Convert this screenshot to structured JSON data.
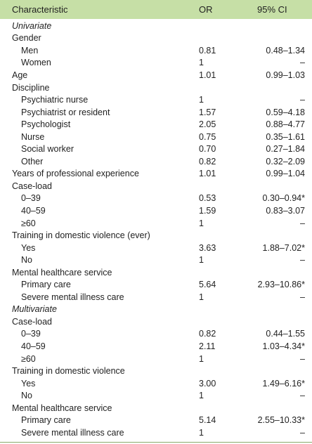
{
  "header": {
    "characteristic": "Characteristic",
    "or": "OR",
    "ci": "95% CI"
  },
  "rows": [
    {
      "label": "Univariate",
      "or": "",
      "ci": "",
      "indent": 0,
      "italic": true
    },
    {
      "label": "Gender",
      "or": "",
      "ci": "",
      "indent": 0
    },
    {
      "label": "Men",
      "or": "0.81",
      "ci": "0.48–1.34",
      "indent": 1
    },
    {
      "label": "Women",
      "or": "1",
      "ci": "–",
      "indent": 1
    },
    {
      "label": "Age",
      "or": "1.01",
      "ci": "0.99–1.03",
      "indent": 0
    },
    {
      "label": "Discipline",
      "or": "",
      "ci": "",
      "indent": 0
    },
    {
      "label": "Psychiatric nurse",
      "or": "1",
      "ci": "–",
      "indent": 1
    },
    {
      "label": "Psychiatrist or resident",
      "or": "1.57",
      "ci": "0.59–4.18",
      "indent": 1
    },
    {
      "label": "Psychologist",
      "or": "2.05",
      "ci": "0.88–4.77",
      "indent": 1
    },
    {
      "label": "Nurse",
      "or": "0.75",
      "ci": "0.35–1.61",
      "indent": 1
    },
    {
      "label": "Social worker",
      "or": "0.70",
      "ci": "0.27–1.84",
      "indent": 1
    },
    {
      "label": "Other",
      "or": "0.82",
      "ci": "0.32–2.09",
      "indent": 1
    },
    {
      "label": "Years of professional experience",
      "or": "1.01",
      "ci": "0.99–1.04",
      "indent": 0
    },
    {
      "label": "Case-load",
      "or": "",
      "ci": "",
      "indent": 0
    },
    {
      "label": "0–39",
      "or": "0.53",
      "ci": "0.30–0.94*",
      "indent": 1
    },
    {
      "label": "40–59",
      "or": "1.59",
      "ci": "0.83–3.07",
      "indent": 1
    },
    {
      "label": "≥60",
      "or": "1",
      "ci": "–",
      "indent": 1
    },
    {
      "label": "Training in domestic violence (ever)",
      "or": "",
      "ci": "",
      "indent": 0
    },
    {
      "label": "Yes",
      "or": "3.63",
      "ci": "1.88–7.02*",
      "indent": 1
    },
    {
      "label": "No",
      "or": "1",
      "ci": "–",
      "indent": 1
    },
    {
      "label": "Mental healthcare service",
      "or": "",
      "ci": "",
      "indent": 0
    },
    {
      "label": "Primary care",
      "or": "5.64",
      "ci": "2.93–10.86*",
      "indent": 1
    },
    {
      "label": "Severe mental illness care",
      "or": "1",
      "ci": "–",
      "indent": 1
    },
    {
      "label": "Multivariate",
      "or": "",
      "ci": "",
      "indent": 0,
      "italic": true
    },
    {
      "label": "Case-load",
      "or": "",
      "ci": "",
      "indent": 0
    },
    {
      "label": "0–39",
      "or": "0.82",
      "ci": "0.44–1.55",
      "indent": 1
    },
    {
      "label": "40–59",
      "or": "2.11",
      "ci": "1.03–4.34*",
      "indent": 1
    },
    {
      "label": "≥60",
      "or": "1",
      "ci": "–",
      "indent": 1
    },
    {
      "label": "Training in domestic violence",
      "or": "",
      "ci": "",
      "indent": 0
    },
    {
      "label": "Yes",
      "or": "3.00",
      "ci": "1.49–6.16*",
      "indent": 1
    },
    {
      "label": "No",
      "or": "1",
      "ci": "–",
      "indent": 1
    },
    {
      "label": "Mental healthcare service",
      "or": "",
      "ci": "",
      "indent": 0
    },
    {
      "label": "Primary care",
      "or": "5.14",
      "ci": "2.55–10.33*",
      "indent": 1
    },
    {
      "label": "Severe mental illness care",
      "or": "1",
      "ci": "–",
      "indent": 1
    }
  ]
}
